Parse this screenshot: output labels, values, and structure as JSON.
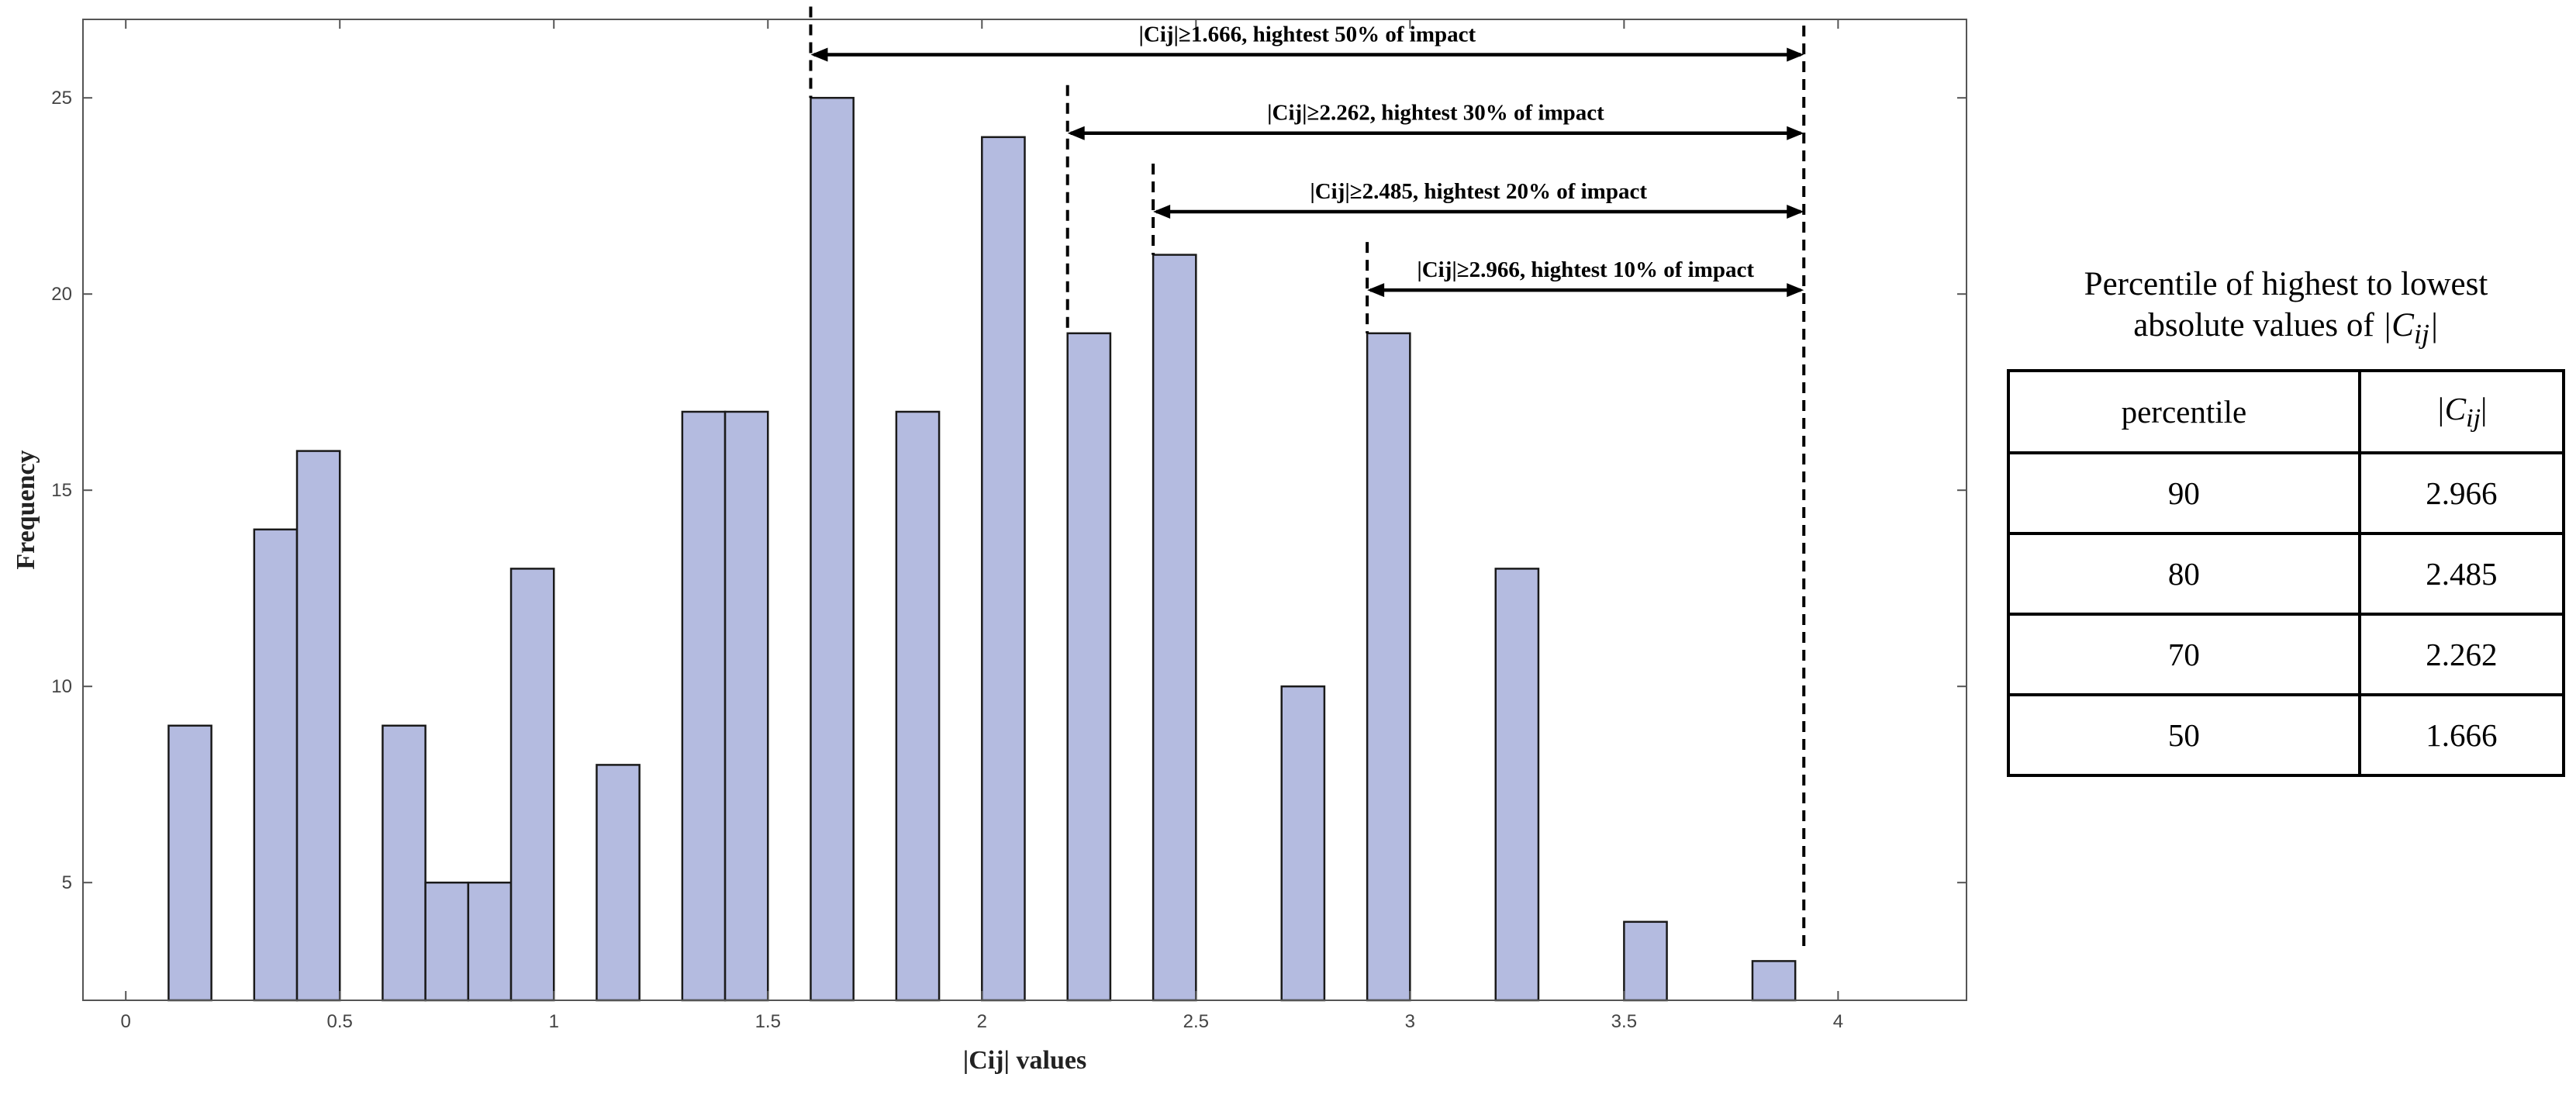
{
  "chart_data": {
    "type": "bar",
    "xlabel": "|Cij| values",
    "ylabel": "Frequency",
    "xlim": [
      -0.1,
      4.3
    ],
    "ylim": [
      2,
      27
    ],
    "xticks": [
      0,
      0.5,
      1,
      1.5,
      2,
      2.5,
      3,
      3.5,
      4
    ],
    "xtick_labels": [
      "0",
      "0.5",
      "1",
      "1.5",
      "2",
      "2.5",
      "3",
      "3.5",
      "4"
    ],
    "yticks": [
      5,
      10,
      15,
      20,
      25
    ],
    "ytick_labels": [
      "5",
      "10",
      "15",
      "20",
      "25"
    ],
    "bin_width": 0.1,
    "bins": [
      {
        "x": 0.15,
        "value": 9
      },
      {
        "x": 0.35,
        "value": 14
      },
      {
        "x": 0.45,
        "value": 16
      },
      {
        "x": 0.65,
        "value": 9
      },
      {
        "x": 0.75,
        "value": 5
      },
      {
        "x": 0.85,
        "value": 5
      },
      {
        "x": 0.95,
        "value": 13
      },
      {
        "x": 1.15,
        "value": 8
      },
      {
        "x": 1.35,
        "value": 17
      },
      {
        "x": 1.45,
        "value": 17
      },
      {
        "x": 1.65,
        "value": 25
      },
      {
        "x": 1.85,
        "value": 17
      },
      {
        "x": 2.05,
        "value": 24
      },
      {
        "x": 2.25,
        "value": 19
      },
      {
        "x": 2.45,
        "value": 21
      },
      {
        "x": 2.75,
        "value": 10
      },
      {
        "x": 2.95,
        "value": 19
      },
      {
        "x": 3.25,
        "value": 13
      },
      {
        "x": 3.55,
        "value": 4
      },
      {
        "x": 3.85,
        "value": 3
      }
    ],
    "threshold_end": 3.92,
    "annotations": [
      {
        "text": "|Cij|≥1.666, hightest 50% of impact",
        "x_start": 1.6,
        "y": 26.1
      },
      {
        "text": "|Cij|≥2.262, hightest 30% of impact",
        "x_start": 2.2,
        "y": 24.1
      },
      {
        "text": "|Cij|≥2.485, hightest 20% of impact",
        "x_start": 2.4,
        "y": 22.1
      },
      {
        "text": "|Cij|≥2.966, hightest 10% of impact",
        "x_start": 2.9,
        "y": 20.1
      }
    ]
  },
  "percentile_panel": {
    "caption_line1": "Percentile of highest to lowest",
    "caption_line2": "absolute values of ",
    "caption_symbol": "|C",
    "caption_subscript": "ij",
    "caption_symbol_end": "|",
    "header_percentile": "percentile",
    "header_value_open": "|C",
    "header_value_sub": "ij",
    "header_value_close": "|",
    "rows": [
      {
        "percentile": "90",
        "value": "2.966"
      },
      {
        "percentile": "80",
        "value": "2.485"
      },
      {
        "percentile": "70",
        "value": "2.262"
      },
      {
        "percentile": "50",
        "value": "1.666"
      }
    ]
  }
}
